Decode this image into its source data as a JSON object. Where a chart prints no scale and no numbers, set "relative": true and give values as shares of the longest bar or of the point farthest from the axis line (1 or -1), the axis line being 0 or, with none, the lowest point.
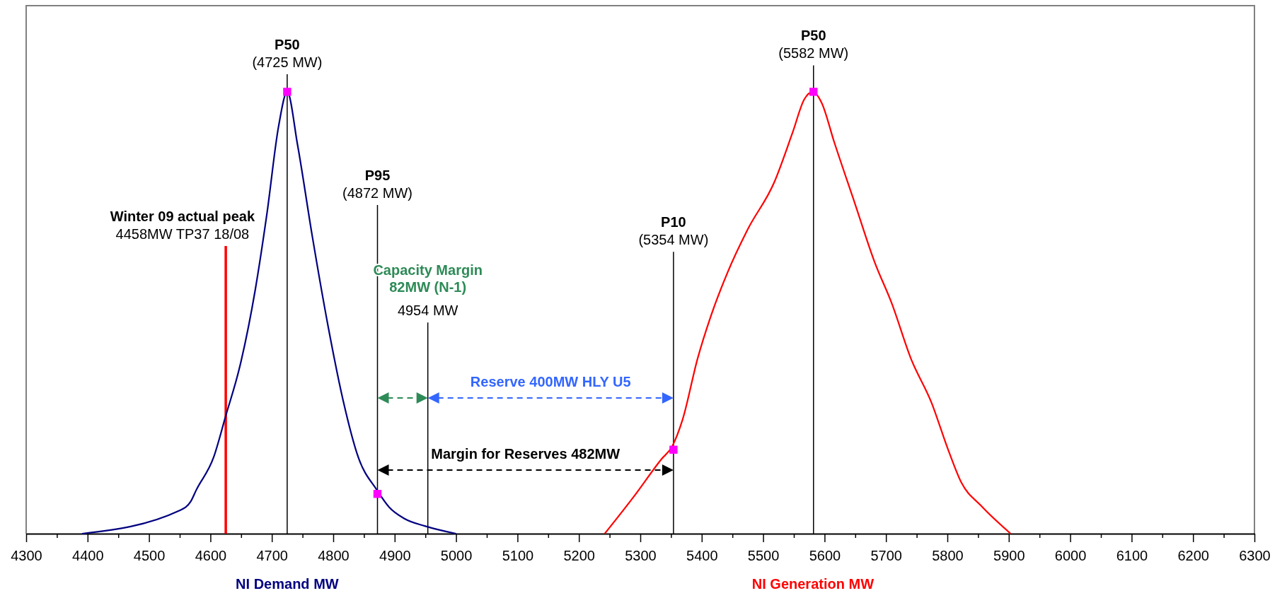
{
  "chart_data": {
    "type": "line",
    "relative": true,
    "xlim": [
      4300,
      6300
    ],
    "xticks": [
      4300,
      {
        "value": 4350,
        "label": null
      },
      4400,
      {
        "value": 4450,
        "label": null
      },
      4500,
      {
        "value": 4550,
        "label": null
      },
      4600,
      {
        "value": 4650,
        "label": null
      },
      4700,
      {
        "value": 4750,
        "label": null
      },
      4800,
      {
        "value": 4850,
        "label": null
      },
      4900,
      {
        "value": 4950,
        "label": null
      },
      5000,
      {
        "value": 5050,
        "label": null
      },
      5100,
      {
        "value": 5150,
        "label": null
      },
      5200,
      {
        "value": 5250,
        "label": null
      },
      5300,
      {
        "value": 5350,
        "label": null
      },
      5400,
      {
        "value": 5450,
        "label": null
      },
      5500,
      {
        "value": 5550,
        "label": null
      },
      5600,
      {
        "value": 5650,
        "label": null
      },
      5700,
      {
        "value": 5750,
        "label": null
      },
      5800,
      {
        "value": 5850,
        "label": null
      },
      5900,
      {
        "value": 5950,
        "label": null
      },
      6000,
      {
        "value": 6050,
        "label": null
      },
      6100,
      {
        "value": 6150,
        "label": null
      },
      6200,
      {
        "value": 6250,
        "label": null
      },
      6300
    ],
    "grid": false,
    "series": [
      {
        "name": "NI Demand MW",
        "color": "#000080",
        "x": [
          4391,
          4549,
          4568,
          4577,
          4605,
          4625,
          4648,
          4673,
          4692,
          4711,
          4725,
          4742,
          4766,
          4791,
          4816,
          4841,
          4871,
          4891,
          4916,
          4950,
          5000
        ],
        "values": [
          0,
          0.052,
          0.073,
          0.099,
          0.172,
          0.267,
          0.379,
          0.552,
          0.724,
          0.922,
          1,
          0.879,
          0.672,
          0.474,
          0.302,
          0.172,
          0.099,
          0.06,
          0.034,
          0.017,
          0
        ]
      },
      {
        "name": "NI Generation MW",
        "color": "#ff0000",
        "x": [
          5242,
          5290,
          5334,
          5352,
          5369,
          5393,
          5415,
          5442,
          5475,
          5518,
          5548,
          5567,
          5581,
          5595,
          5616,
          5649,
          5682,
          5709,
          5741,
          5774,
          5801,
          5823,
          5855,
          5903
        ],
        "values": [
          0,
          0.085,
          0.168,
          0.198,
          0.259,
          0.395,
          0.493,
          0.591,
          0.689,
          0.795,
          0.908,
          0.983,
          1,
          0.976,
          0.885,
          0.749,
          0.613,
          0.523,
          0.395,
          0.297,
          0.191,
          0.115,
          0.063,
          0
        ]
      },
      {
        "type": "scatter",
        "marker": "square",
        "color": "#ff00ff",
        "x": [
          4725,
          4872,
          5354,
          5582
        ],
        "values": [
          1,
          0.09,
          0.19,
          1
        ]
      }
    ],
    "ref_lines": [
      {
        "axis": "x",
        "value": 4625,
        "color": "#ff0000"
      },
      {
        "axis": "x",
        "value": 4725,
        "color": "#000000"
      },
      {
        "axis": "x",
        "value": 4872,
        "color": "#000000"
      },
      {
        "axis": "x",
        "value": 4954,
        "color": "#000000"
      },
      {
        "axis": "x",
        "value": 5354,
        "color": "#000000"
      },
      {
        "axis": "x",
        "value": 5582,
        "color": "#000000"
      }
    ],
    "annotations": [
      "Capacity Margin\n82MW (N-1)",
      "Reserve 400MW HLY U5",
      "Margin for Reserves 482MW",
      {
        "text": "Winter 09 actual peak\n4458MW TP37 18/08",
        "x": 4625,
        "y": 0.651
      },
      {
        "text": "P50\n(4725 MW)",
        "x": 4725,
        "y": 1.04
      },
      {
        "text": "P95\n(4872 MW)",
        "x": 4872,
        "y": 0.744
      },
      {
        "text": "4954 MW",
        "x": 4954,
        "y": 0.478
      },
      {
        "text": "P10\n(5354 MW)",
        "x": 5354,
        "y": 0.638
      },
      {
        "text": "P50\n(5582 MW)",
        "x": 5582,
        "y": 1.06
      }
    ]
  }
}
